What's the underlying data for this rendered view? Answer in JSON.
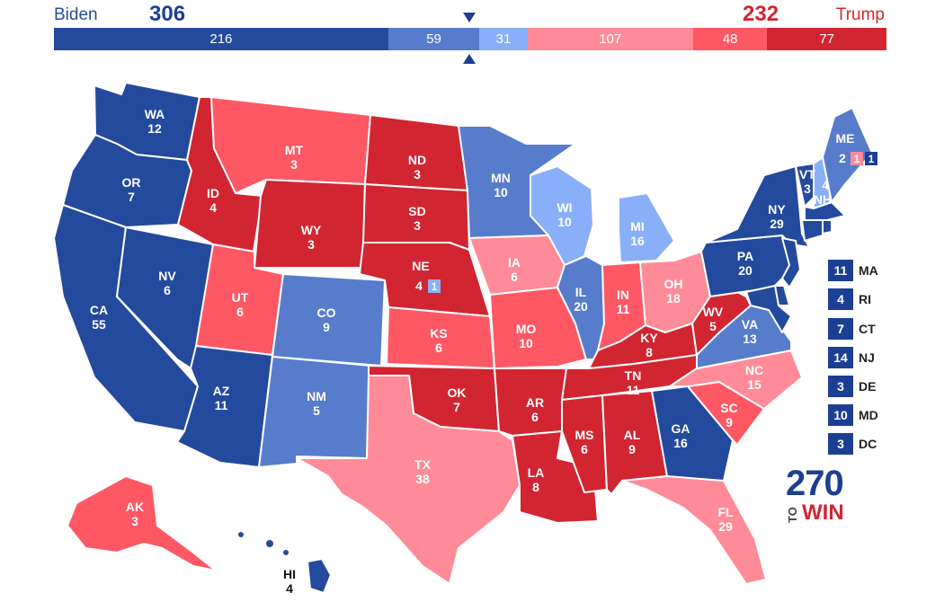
{
  "header": {
    "dem_name": "Biden",
    "dem_total": "306",
    "rep_name": "Trump",
    "rep_total": "232"
  },
  "bar": [
    {
      "label": "216",
      "value": 216,
      "color": "#244a9d"
    },
    {
      "label": "59",
      "value": 59,
      "color": "#577ccc"
    },
    {
      "label": "31",
      "value": 31,
      "color": "#8aaff9"
    },
    {
      "label": "107",
      "value": 107,
      "color": "#ff8b98"
    },
    {
      "label": "48",
      "value": 48,
      "color": "#ff5865"
    },
    {
      "label": "77",
      "value": 77,
      "color": "#d22532"
    }
  ],
  "colors": {
    "solid_dem": "#244a9d",
    "likely_dem": "#577ccc",
    "lean_dem": "#8aaff9",
    "lean_rep": "#ff8b98",
    "likely_rep": "#ff5865",
    "solid_rep": "#d22532"
  },
  "states": {
    "WA": {
      "name": "WA",
      "ev": "12"
    },
    "OR": {
      "name": "OR",
      "ev": "7"
    },
    "CA": {
      "name": "CA",
      "ev": "55"
    },
    "NV": {
      "name": "NV",
      "ev": "6"
    },
    "ID": {
      "name": "ID",
      "ev": "4"
    },
    "MT": {
      "name": "MT",
      "ev": "3"
    },
    "WY": {
      "name": "WY",
      "ev": "3"
    },
    "UT": {
      "name": "UT",
      "ev": "6"
    },
    "AZ": {
      "name": "AZ",
      "ev": "11"
    },
    "CO": {
      "name": "CO",
      "ev": "9"
    },
    "NM": {
      "name": "NM",
      "ev": "5"
    },
    "ND": {
      "name": "ND",
      "ev": "3"
    },
    "SD": {
      "name": "SD",
      "ev": "3"
    },
    "NE": {
      "name": "NE",
      "ev": "4",
      "district_ev": "1"
    },
    "KS": {
      "name": "KS",
      "ev": "6"
    },
    "OK": {
      "name": "OK",
      "ev": "7"
    },
    "TX": {
      "name": "TX",
      "ev": "38"
    },
    "MN": {
      "name": "MN",
      "ev": "10"
    },
    "IA": {
      "name": "IA",
      "ev": "6"
    },
    "MO": {
      "name": "MO",
      "ev": "10"
    },
    "AR": {
      "name": "AR",
      "ev": "6"
    },
    "LA": {
      "name": "LA",
      "ev": "8"
    },
    "WI": {
      "name": "WI",
      "ev": "10"
    },
    "IL": {
      "name": "IL",
      "ev": "20"
    },
    "MI": {
      "name": "MI",
      "ev": "16"
    },
    "IN": {
      "name": "IN",
      "ev": "11"
    },
    "OH": {
      "name": "OH",
      "ev": "18"
    },
    "KY": {
      "name": "KY",
      "ev": "8"
    },
    "TN": {
      "name": "TN",
      "ev": "11"
    },
    "MS": {
      "name": "MS",
      "ev": "6"
    },
    "AL": {
      "name": "AL",
      "ev": "9"
    },
    "GA": {
      "name": "GA",
      "ev": "16"
    },
    "FL": {
      "name": "FL",
      "ev": "29"
    },
    "SC": {
      "name": "SC",
      "ev": "9"
    },
    "NC": {
      "name": "NC",
      "ev": "15"
    },
    "VA": {
      "name": "VA",
      "ev": "13"
    },
    "WV": {
      "name": "WV",
      "ev": "5"
    },
    "PA": {
      "name": "PA",
      "ev": "20"
    },
    "NY": {
      "name": "NY",
      "ev": "29"
    },
    "VT": {
      "name": "VT",
      "ev": "3"
    },
    "NH": {
      "name": "NH",
      "ev": "4"
    },
    "ME": {
      "name": "ME",
      "ev": "2",
      "district1_ev": "1",
      "district2_ev": "1"
    },
    "AK": {
      "name": "AK",
      "ev": "3"
    },
    "HI": {
      "name": "HI",
      "ev": "4"
    }
  },
  "small_states": [
    {
      "abbr": "MA",
      "ev": "11"
    },
    {
      "abbr": "RI",
      "ev": "4"
    },
    {
      "abbr": "CT",
      "ev": "7"
    },
    {
      "abbr": "NJ",
      "ev": "14"
    },
    {
      "abbr": "DE",
      "ev": "3"
    },
    {
      "abbr": "MD",
      "ev": "10"
    },
    {
      "abbr": "DC",
      "ev": "3"
    }
  ],
  "logo": {
    "number": "270",
    "to": "TO",
    "win": "WIN"
  }
}
